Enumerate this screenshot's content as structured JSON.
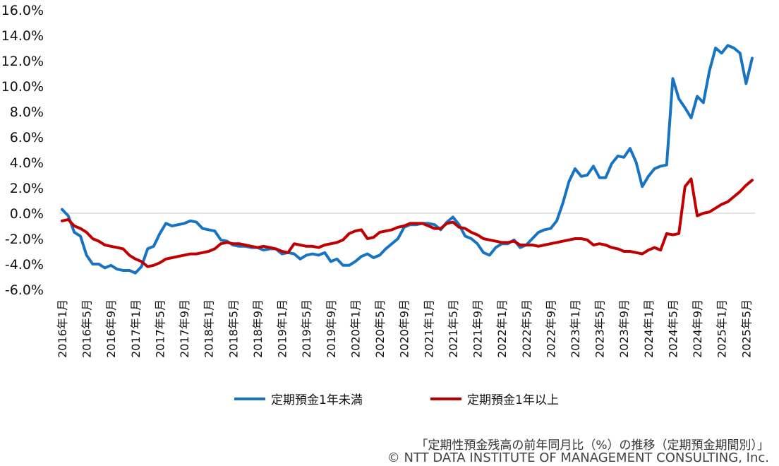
{
  "chart_data": {
    "type": "line",
    "title": "",
    "xlabel": "",
    "ylabel": "",
    "ylim": [
      -6.0,
      16.0
    ],
    "yticks": [
      "16.0%",
      "14.0%",
      "12.0%",
      "10.0%",
      "8.0%",
      "6.0%",
      "4.0%",
      "2.0%",
      "0.0%",
      "-2.0%",
      "-4.0%",
      "-6.0%"
    ],
    "ytick_values": [
      16,
      14,
      12,
      10,
      8,
      6,
      4,
      2,
      0,
      -2,
      -4,
      -6
    ],
    "x_labels": [
      "2016年1月",
      "2016年5月",
      "2016年9月",
      "2017年1月",
      "2017年5月",
      "2017年9月",
      "2018年1月",
      "2018年5月",
      "2018年9月",
      "2019年1月",
      "2019年5月",
      "2019年9月",
      "2020年1月",
      "2020年5月",
      "2020年9月",
      "2021年1月",
      "2021年5月",
      "2021年9月",
      "2022年1月",
      "2022年5月",
      "2022年9月",
      "2023年1月",
      "2023年5月",
      "2023年9月",
      "2024年1月",
      "2024年5月",
      "2024年9月",
      "2025年1月",
      "2025年5月"
    ],
    "series": [
      {
        "name": "定期預金1年未満",
        "color": "#1874c2",
        "points": [
          [
            0,
            0.3
          ],
          [
            1,
            -0.2
          ],
          [
            2,
            -1.5
          ],
          [
            3,
            -1.8
          ],
          [
            4,
            -3.3
          ],
          [
            5,
            -4.0
          ],
          [
            6,
            -4.0
          ],
          [
            7,
            -4.3
          ],
          [
            8,
            -4.1
          ],
          [
            9,
            -4.4
          ],
          [
            10,
            -4.5
          ],
          [
            11,
            -4.5
          ],
          [
            12,
            -4.7
          ],
          [
            13,
            -4.2
          ],
          [
            14,
            -2.8
          ],
          [
            15,
            -2.6
          ],
          [
            16,
            -1.6
          ],
          [
            17,
            -0.8
          ],
          [
            18,
            -1.0
          ],
          [
            19,
            -0.9
          ],
          [
            20,
            -0.8
          ],
          [
            21,
            -0.6
          ],
          [
            22,
            -0.7
          ],
          [
            23,
            -1.2
          ],
          [
            24,
            -1.3
          ],
          [
            25,
            -1.4
          ],
          [
            26,
            -2.1
          ],
          [
            27,
            -2.2
          ],
          [
            28,
            -2.5
          ],
          [
            29,
            -2.6
          ],
          [
            30,
            -2.6
          ],
          [
            31,
            -2.7
          ],
          [
            32,
            -2.7
          ],
          [
            33,
            -2.9
          ],
          [
            34,
            -2.8
          ],
          [
            35,
            -2.8
          ],
          [
            36,
            -3.2
          ],
          [
            37,
            -3.1
          ],
          [
            38,
            -3.2
          ],
          [
            39,
            -3.6
          ],
          [
            40,
            -3.3
          ],
          [
            41,
            -3.2
          ],
          [
            42,
            -3.3
          ],
          [
            43,
            -3.1
          ],
          [
            44,
            -3.8
          ],
          [
            45,
            -3.6
          ],
          [
            46,
            -4.1
          ],
          [
            47,
            -4.1
          ],
          [
            48,
            -3.8
          ],
          [
            49,
            -3.4
          ],
          [
            50,
            -3.2
          ],
          [
            51,
            -3.5
          ],
          [
            52,
            -3.3
          ],
          [
            53,
            -2.8
          ],
          [
            54,
            -2.4
          ],
          [
            55,
            -2.0
          ],
          [
            56,
            -1.1
          ],
          [
            57,
            -0.9
          ],
          [
            58,
            -0.9
          ],
          [
            59,
            -0.8
          ],
          [
            60,
            -0.8
          ],
          [
            61,
            -0.9
          ],
          [
            62,
            -1.3
          ],
          [
            63,
            -0.7
          ],
          [
            64,
            -0.3
          ],
          [
            65,
            -0.9
          ],
          [
            66,
            -1.8
          ],
          [
            67,
            -2.0
          ],
          [
            68,
            -2.4
          ],
          [
            69,
            -3.1
          ],
          [
            70,
            -3.3
          ],
          [
            71,
            -2.7
          ],
          [
            72,
            -2.4
          ],
          [
            73,
            -2.4
          ],
          [
            74,
            -2.1
          ],
          [
            75,
            -2.7
          ],
          [
            76,
            -2.5
          ],
          [
            77,
            -2.0
          ],
          [
            78,
            -1.5
          ],
          [
            79,
            -1.3
          ],
          [
            80,
            -1.2
          ],
          [
            81,
            -0.6
          ],
          [
            82,
            0.8
          ],
          [
            83,
            2.5
          ],
          [
            84,
            3.5
          ],
          [
            85,
            2.9
          ],
          [
            86,
            3.0
          ],
          [
            87,
            3.7
          ],
          [
            88,
            2.8
          ],
          [
            89,
            2.8
          ],
          [
            90,
            3.9
          ],
          [
            91,
            4.5
          ],
          [
            92,
            4.4
          ],
          [
            93,
            5.1
          ],
          [
            94,
            4.0
          ],
          [
            95,
            2.1
          ],
          [
            96,
            2.9
          ],
          [
            97,
            3.5
          ],
          [
            98,
            3.7
          ],
          [
            99,
            3.8
          ],
          [
            100,
            10.6
          ],
          [
            101,
            9.0
          ],
          [
            102,
            8.3
          ],
          [
            103,
            7.5
          ],
          [
            104,
            9.2
          ],
          [
            105,
            8.7
          ],
          [
            106,
            11.2
          ],
          [
            107,
            13.0
          ],
          [
            108,
            12.6
          ],
          [
            109,
            13.2
          ],
          [
            110,
            13.0
          ],
          [
            111,
            12.6
          ],
          [
            112,
            10.2
          ],
          [
            113,
            12.2
          ]
        ]
      },
      {
        "name": "定期預金1年以上",
        "color": "#c00000",
        "points": [
          [
            0,
            -0.6
          ],
          [
            1,
            -0.5
          ],
          [
            2,
            -1.0
          ],
          [
            3,
            -1.2
          ],
          [
            4,
            -1.5
          ],
          [
            5,
            -2.0
          ],
          [
            6,
            -2.2
          ],
          [
            7,
            -2.5
          ],
          [
            8,
            -2.6
          ],
          [
            9,
            -2.7
          ],
          [
            10,
            -2.8
          ],
          [
            11,
            -3.3
          ],
          [
            12,
            -3.6
          ],
          [
            13,
            -3.8
          ],
          [
            14,
            -4.2
          ],
          [
            15,
            -4.1
          ],
          [
            16,
            -3.9
          ],
          [
            17,
            -3.6
          ],
          [
            18,
            -3.5
          ],
          [
            19,
            -3.4
          ],
          [
            20,
            -3.3
          ],
          [
            21,
            -3.2
          ],
          [
            22,
            -3.2
          ],
          [
            23,
            -3.1
          ],
          [
            24,
            -3.0
          ],
          [
            25,
            -2.8
          ],
          [
            26,
            -2.4
          ],
          [
            27,
            -2.3
          ],
          [
            28,
            -2.4
          ],
          [
            29,
            -2.4
          ],
          [
            30,
            -2.5
          ],
          [
            31,
            -2.6
          ],
          [
            32,
            -2.7
          ],
          [
            33,
            -2.6
          ],
          [
            34,
            -2.7
          ],
          [
            35,
            -2.8
          ],
          [
            36,
            -3.0
          ],
          [
            37,
            -3.1
          ],
          [
            38,
            -2.4
          ],
          [
            39,
            -2.5
          ],
          [
            40,
            -2.6
          ],
          [
            41,
            -2.6
          ],
          [
            42,
            -2.7
          ],
          [
            43,
            -2.5
          ],
          [
            44,
            -2.4
          ],
          [
            45,
            -2.3
          ],
          [
            46,
            -2.1
          ],
          [
            47,
            -1.6
          ],
          [
            48,
            -1.4
          ],
          [
            49,
            -1.3
          ],
          [
            50,
            -2.0
          ],
          [
            51,
            -1.9
          ],
          [
            52,
            -1.5
          ],
          [
            53,
            -1.4
          ],
          [
            54,
            -1.3
          ],
          [
            55,
            -1.1
          ],
          [
            56,
            -1.0
          ],
          [
            57,
            -0.8
          ],
          [
            58,
            -0.8
          ],
          [
            59,
            -0.8
          ],
          [
            60,
            -1.0
          ],
          [
            61,
            -1.2
          ],
          [
            62,
            -1.2
          ],
          [
            63,
            -0.8
          ],
          [
            64,
            -0.7
          ],
          [
            65,
            -1.1
          ],
          [
            66,
            -1.2
          ],
          [
            67,
            -1.5
          ],
          [
            68,
            -1.7
          ],
          [
            69,
            -2.0
          ],
          [
            70,
            -2.1
          ],
          [
            71,
            -2.2
          ],
          [
            72,
            -2.3
          ],
          [
            73,
            -2.3
          ],
          [
            74,
            -2.2
          ],
          [
            75,
            -2.5
          ],
          [
            76,
            -2.5
          ],
          [
            77,
            -2.5
          ],
          [
            78,
            -2.6
          ],
          [
            79,
            -2.5
          ],
          [
            80,
            -2.4
          ],
          [
            81,
            -2.3
          ],
          [
            82,
            -2.2
          ],
          [
            83,
            -2.1
          ],
          [
            84,
            -2.0
          ],
          [
            85,
            -2.0
          ],
          [
            86,
            -2.1
          ],
          [
            87,
            -2.5
          ],
          [
            88,
            -2.4
          ],
          [
            89,
            -2.5
          ],
          [
            90,
            -2.7
          ],
          [
            91,
            -2.8
          ],
          [
            92,
            -3.0
          ],
          [
            93,
            -3.0
          ],
          [
            94,
            -3.1
          ],
          [
            95,
            -3.2
          ],
          [
            96,
            -2.9
          ],
          [
            97,
            -2.7
          ],
          [
            98,
            -2.9
          ],
          [
            99,
            -1.6
          ],
          [
            100,
            -1.7
          ],
          [
            101,
            -1.6
          ],
          [
            102,
            2.1
          ],
          [
            103,
            2.7
          ],
          [
            104,
            -0.2
          ],
          [
            105,
            0.0
          ],
          [
            106,
            0.1
          ],
          [
            107,
            0.4
          ],
          [
            108,
            0.7
          ],
          [
            109,
            0.9
          ],
          [
            110,
            1.3
          ],
          [
            111,
            1.7
          ],
          [
            112,
            2.2
          ],
          [
            113,
            2.6
          ]
        ]
      }
    ],
    "legend_position": "bottom",
    "grid": false
  },
  "captions": {
    "line1": "「定期性預金残高の前年同月比（%）の推移（定期預金期間別）」",
    "line2": "© NTT DATA INSTITUTE OF MANAGEMENT CONSULTING, Inc."
  }
}
